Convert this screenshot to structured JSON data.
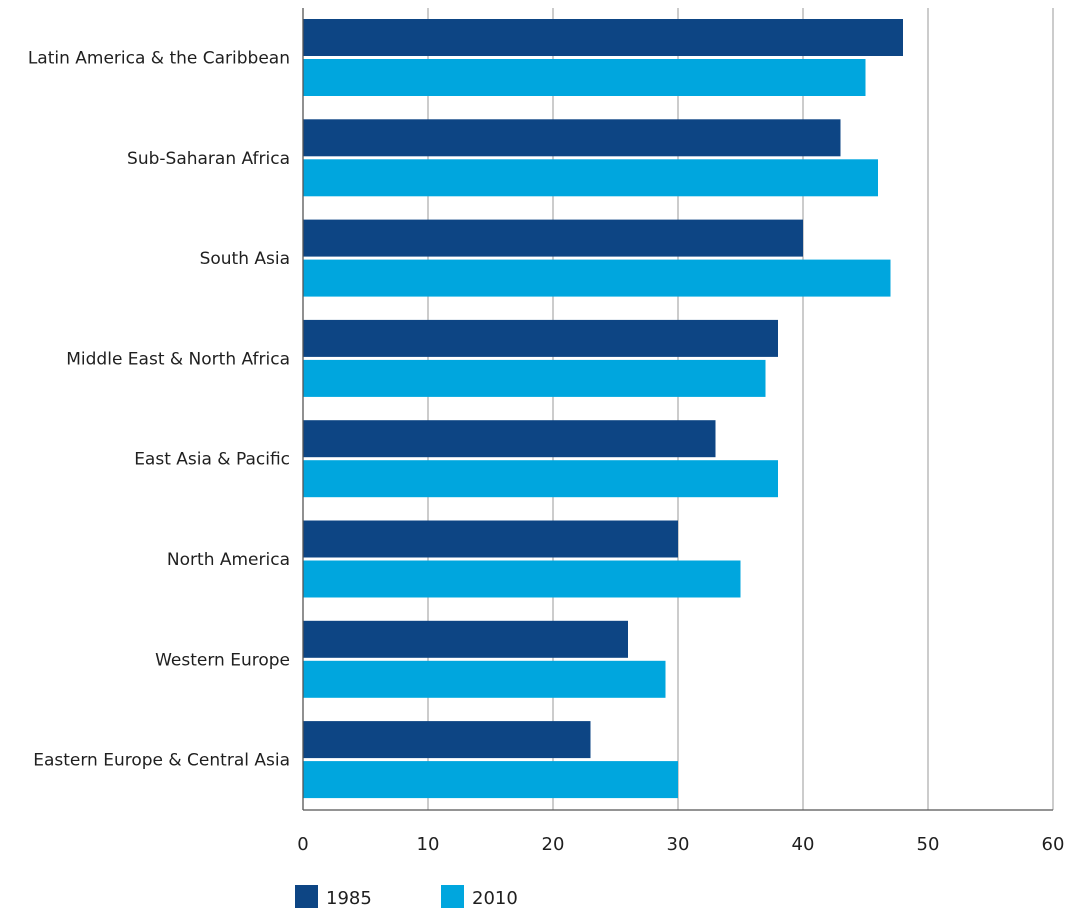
{
  "chart_data": {
    "type": "bar",
    "orientation": "horizontal",
    "categories": [
      "Latin America & the Caribbean",
      "Sub-Saharan Africa",
      "South Asia",
      "Middle East & North Africa",
      "East Asia & Pacific",
      "North America",
      "Western Europe",
      "Eastern Europe & Central Asia"
    ],
    "series": [
      {
        "name": "1985",
        "color": "#0d4584",
        "values": [
          48,
          43,
          40,
          38,
          33,
          30,
          26,
          23
        ]
      },
      {
        "name": "2010",
        "color": "#00a6de",
        "values": [
          45,
          46,
          47,
          37,
          38,
          35,
          29,
          30
        ]
      }
    ],
    "xlim": [
      0,
      60
    ],
    "xticks": [
      "0",
      "10",
      "20",
      "30",
      "40",
      "50",
      "60"
    ],
    "grid": "vertical",
    "legend_position": "bottom-left",
    "gridline_color": "#9a9a9a",
    "axis_color": "#555555"
  }
}
